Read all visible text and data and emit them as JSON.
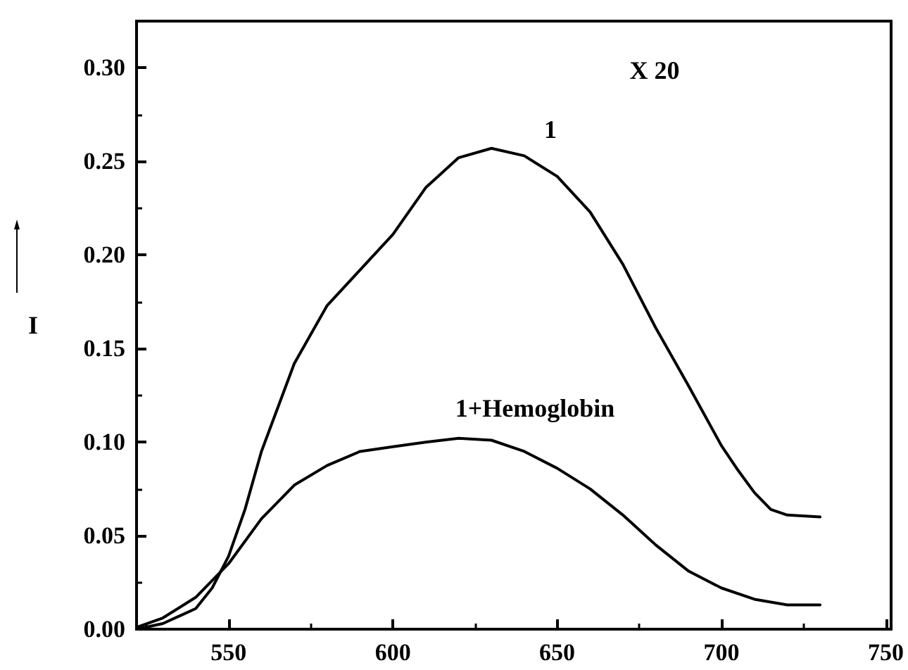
{
  "chart_data": {
    "type": "line",
    "ylabel": "I",
    "xlim": [
      522,
      750
    ],
    "xticks": [
      550,
      600,
      650,
      700,
      750
    ],
    "ylim": [
      0,
      0.325
    ],
    "yticks": [
      {
        "value": 0,
        "label": "0.00"
      },
      0.05,
      {
        "value": 0.1,
        "label": "0.10"
      },
      0.15,
      {
        "value": 0.2,
        "label": "0.20"
      },
      0.25,
      {
        "value": 0.3,
        "label": "0.30"
      }
    ],
    "grid": false,
    "marker": "none",
    "line_style": "solid",
    "annotations": [
      "X 20",
      "1",
      "1+Hemoglobin"
    ],
    "series": [
      {
        "color": "#000000",
        "x": [
          522,
          530,
          540,
          545,
          550,
          555,
          560,
          570,
          580,
          590,
          600,
          610,
          620,
          630,
          640,
          650,
          660,
          670,
          680,
          690,
          700,
          705,
          710,
          715,
          720,
          730
        ],
        "values": [
          0,
          0.003,
          0.011,
          0.022,
          0.039,
          0.064,
          0.095,
          0.142,
          0.173,
          0.192,
          0.211,
          0.236,
          0.252,
          0.257,
          0.253,
          0.242,
          0.223,
          0.195,
          0.161,
          0.13,
          0.098,
          0.085,
          0.073,
          0.064,
          0.061,
          0.06
        ]
      },
      {
        "color": "#000000",
        "x": [
          522,
          530,
          540,
          550,
          560,
          570,
          580,
          590,
          600,
          610,
          620,
          630,
          640,
          650,
          660,
          670,
          680,
          690,
          700,
          710,
          720,
          730
        ],
        "values": [
          0.001,
          0.006,
          0.017,
          0.035,
          0.059,
          0.077,
          0.0875,
          0.095,
          0.0975,
          0.1,
          0.102,
          0.101,
          0.095,
          0.086,
          0.075,
          0.061,
          0.045,
          0.031,
          0.022,
          0.016,
          0.013,
          0.013
        ]
      }
    ]
  }
}
